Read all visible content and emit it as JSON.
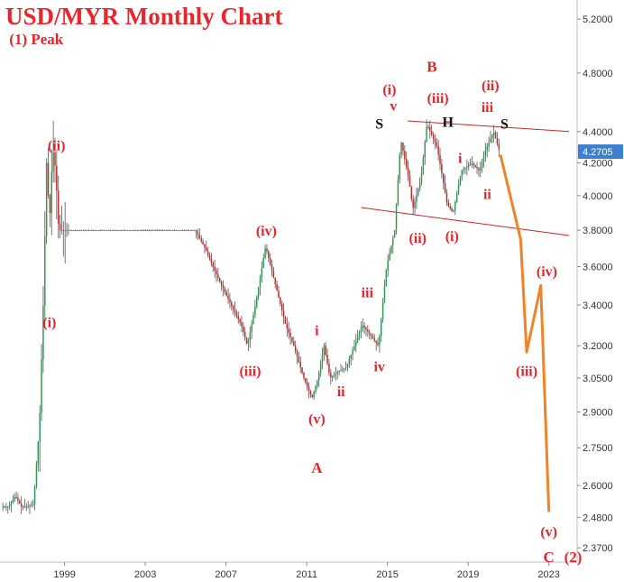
{
  "chart_data": {
    "type": "candlestick",
    "title": "USD/MYR Monthly Chart",
    "y_scale": "log",
    "ylim": [
      2.32,
      5.35
    ],
    "xlim": [
      1995.8,
      2024.4
    ],
    "y_ticks": [
      "5.2000",
      "4.8000",
      "4.4000",
      "4.2000",
      "4.0000",
      "3.8000",
      "3.6000",
      "3.4000",
      "3.2000",
      "3.0500",
      "2.9000",
      "2.7500",
      "2.6000",
      "2.4800",
      "2.3700"
    ],
    "x_ticks": [
      "1999",
      "2003",
      "2007",
      "2011",
      "2015",
      "2019",
      "2023"
    ],
    "last_price": "4.2705",
    "colors": {
      "up": "#2e9a55",
      "down": "#c62828",
      "projection": "#f0832a",
      "channel": "#c62828",
      "label": "#e3262d",
      "pattern_label": "#111111",
      "price_tag": "#3f7fd0"
    },
    "price_path": [
      [
        1995.9,
        2.52
      ],
      [
        1996.3,
        2.52
      ],
      [
        1996.6,
        2.56
      ],
      [
        1996.9,
        2.52
      ],
      [
        1997.2,
        2.52
      ],
      [
        1997.5,
        2.53
      ],
      [
        1997.8,
        2.85
      ],
      [
        1998.0,
        3.45
      ],
      [
        1998.15,
        4.2
      ],
      [
        1998.3,
        3.85
      ],
      [
        1998.45,
        4.3
      ],
      [
        1998.6,
        4.15
      ],
      [
        1998.75,
        3.8
      ],
      [
        2000.0,
        3.8
      ],
      [
        2002.0,
        3.8
      ],
      [
        2005.5,
        3.8
      ],
      [
        2006.0,
        3.7
      ],
      [
        2006.6,
        3.55
      ],
      [
        2007.2,
        3.42
      ],
      [
        2007.8,
        3.3
      ],
      [
        2008.1,
        3.2
      ],
      [
        2008.5,
        3.4
      ],
      [
        2009.0,
        3.71
      ],
      [
        2009.5,
        3.5
      ],
      [
        2010.0,
        3.3
      ],
      [
        2010.4,
        3.2
      ],
      [
        2010.9,
        3.05
      ],
      [
        2011.3,
        2.96
      ],
      [
        2011.6,
        3.05
      ],
      [
        2011.9,
        3.2
      ],
      [
        2012.2,
        3.05
      ],
      [
        2012.6,
        3.08
      ],
      [
        2013.0,
        3.1
      ],
      [
        2013.4,
        3.2
      ],
      [
        2013.8,
        3.3
      ],
      [
        2014.2,
        3.25
      ],
      [
        2014.6,
        3.2
      ],
      [
        2015.0,
        3.6
      ],
      [
        2015.4,
        3.8
      ],
      [
        2015.7,
        4.35
      ],
      [
        2016.1,
        4.1
      ],
      [
        2016.3,
        3.92
      ],
      [
        2016.7,
        4.1
      ],
      [
        2017.0,
        4.45
      ],
      [
        2017.5,
        4.3
      ],
      [
        2018.0,
        3.95
      ],
      [
        2018.3,
        3.9
      ],
      [
        2018.7,
        4.15
      ],
      [
        2019.2,
        4.2
      ],
      [
        2019.6,
        4.15
      ],
      [
        2019.9,
        4.28
      ],
      [
        2020.3,
        4.4
      ],
      [
        2020.6,
        4.27
      ]
    ],
    "projection_path": [
      [
        2020.6,
        4.25
      ],
      [
        2021.6,
        3.75
      ],
      [
        2021.9,
        3.17
      ],
      [
        2022.6,
        3.5
      ],
      [
        2023.0,
        2.5
      ]
    ],
    "channel_lines": [
      {
        "from": [
          2016.0,
          4.47
        ],
        "to": [
          2024.0,
          4.4
        ]
      },
      {
        "from": [
          2013.7,
          3.93
        ],
        "to": [
          2024.0,
          3.77
        ]
      }
    ],
    "annotations": [
      {
        "text": "(1) Peak",
        "x": 1997.6,
        "y": 5.01,
        "size": "big"
      },
      {
        "text": "(ii)",
        "x": 1998.6,
        "y": 4.28
      },
      {
        "text": "(i)",
        "x": 1998.25,
        "y": 3.29
      },
      {
        "text": "(iv)",
        "x": 2009.0,
        "y": 3.77
      },
      {
        "text": "(iii)",
        "x": 2008.2,
        "y": 3.06
      },
      {
        "text": "(v)",
        "x": 2011.5,
        "y": 2.85
      },
      {
        "text": "A",
        "x": 2011.5,
        "y": 2.65,
        "size": "big"
      },
      {
        "text": "i",
        "x": 2011.5,
        "y": 3.25
      },
      {
        "text": "ii",
        "x": 2012.7,
        "y": 2.97
      },
      {
        "text": "iii",
        "x": 2014.0,
        "y": 3.44
      },
      {
        "text": "iv",
        "x": 2014.6,
        "y": 3.08
      },
      {
        "text": "(i)",
        "x": 2015.1,
        "y": 4.65
      },
      {
        "text": "v",
        "x": 2015.3,
        "y": 4.54
      },
      {
        "text": "B",
        "x": 2017.2,
        "y": 4.81,
        "size": "big"
      },
      {
        "text": "(iii)",
        "x": 2017.5,
        "y": 4.59
      },
      {
        "text": "(ii)",
        "x": 2016.5,
        "y": 3.73
      },
      {
        "text": "(i)",
        "x": 2018.2,
        "y": 3.74
      },
      {
        "text": "i",
        "x": 2018.6,
        "y": 4.2
      },
      {
        "text": "(ii)",
        "x": 2020.1,
        "y": 4.68
      },
      {
        "text": "iii",
        "x": 2019.95,
        "y": 4.53
      },
      {
        "text": "ii",
        "x": 2019.95,
        "y": 3.98
      },
      {
        "text": "(iv)",
        "x": 2022.9,
        "y": 3.55
      },
      {
        "text": "(iii)",
        "x": 2021.9,
        "y": 3.06
      },
      {
        "text": "(v)",
        "x": 2023.0,
        "y": 2.41
      },
      {
        "text": "C",
        "x": 2023.0,
        "y": 2.32,
        "size": "big"
      },
      {
        "text": "(2)",
        "x": 2024.2,
        "y": 2.32,
        "size": "big"
      },
      {
        "text": "S",
        "x": 2014.6,
        "y": 4.42,
        "style": "pattern"
      },
      {
        "text": "H",
        "x": 2018.0,
        "y": 4.43,
        "style": "pattern"
      },
      {
        "text": "S",
        "x": 2020.8,
        "y": 4.42,
        "style": "pattern"
      }
    ]
  }
}
